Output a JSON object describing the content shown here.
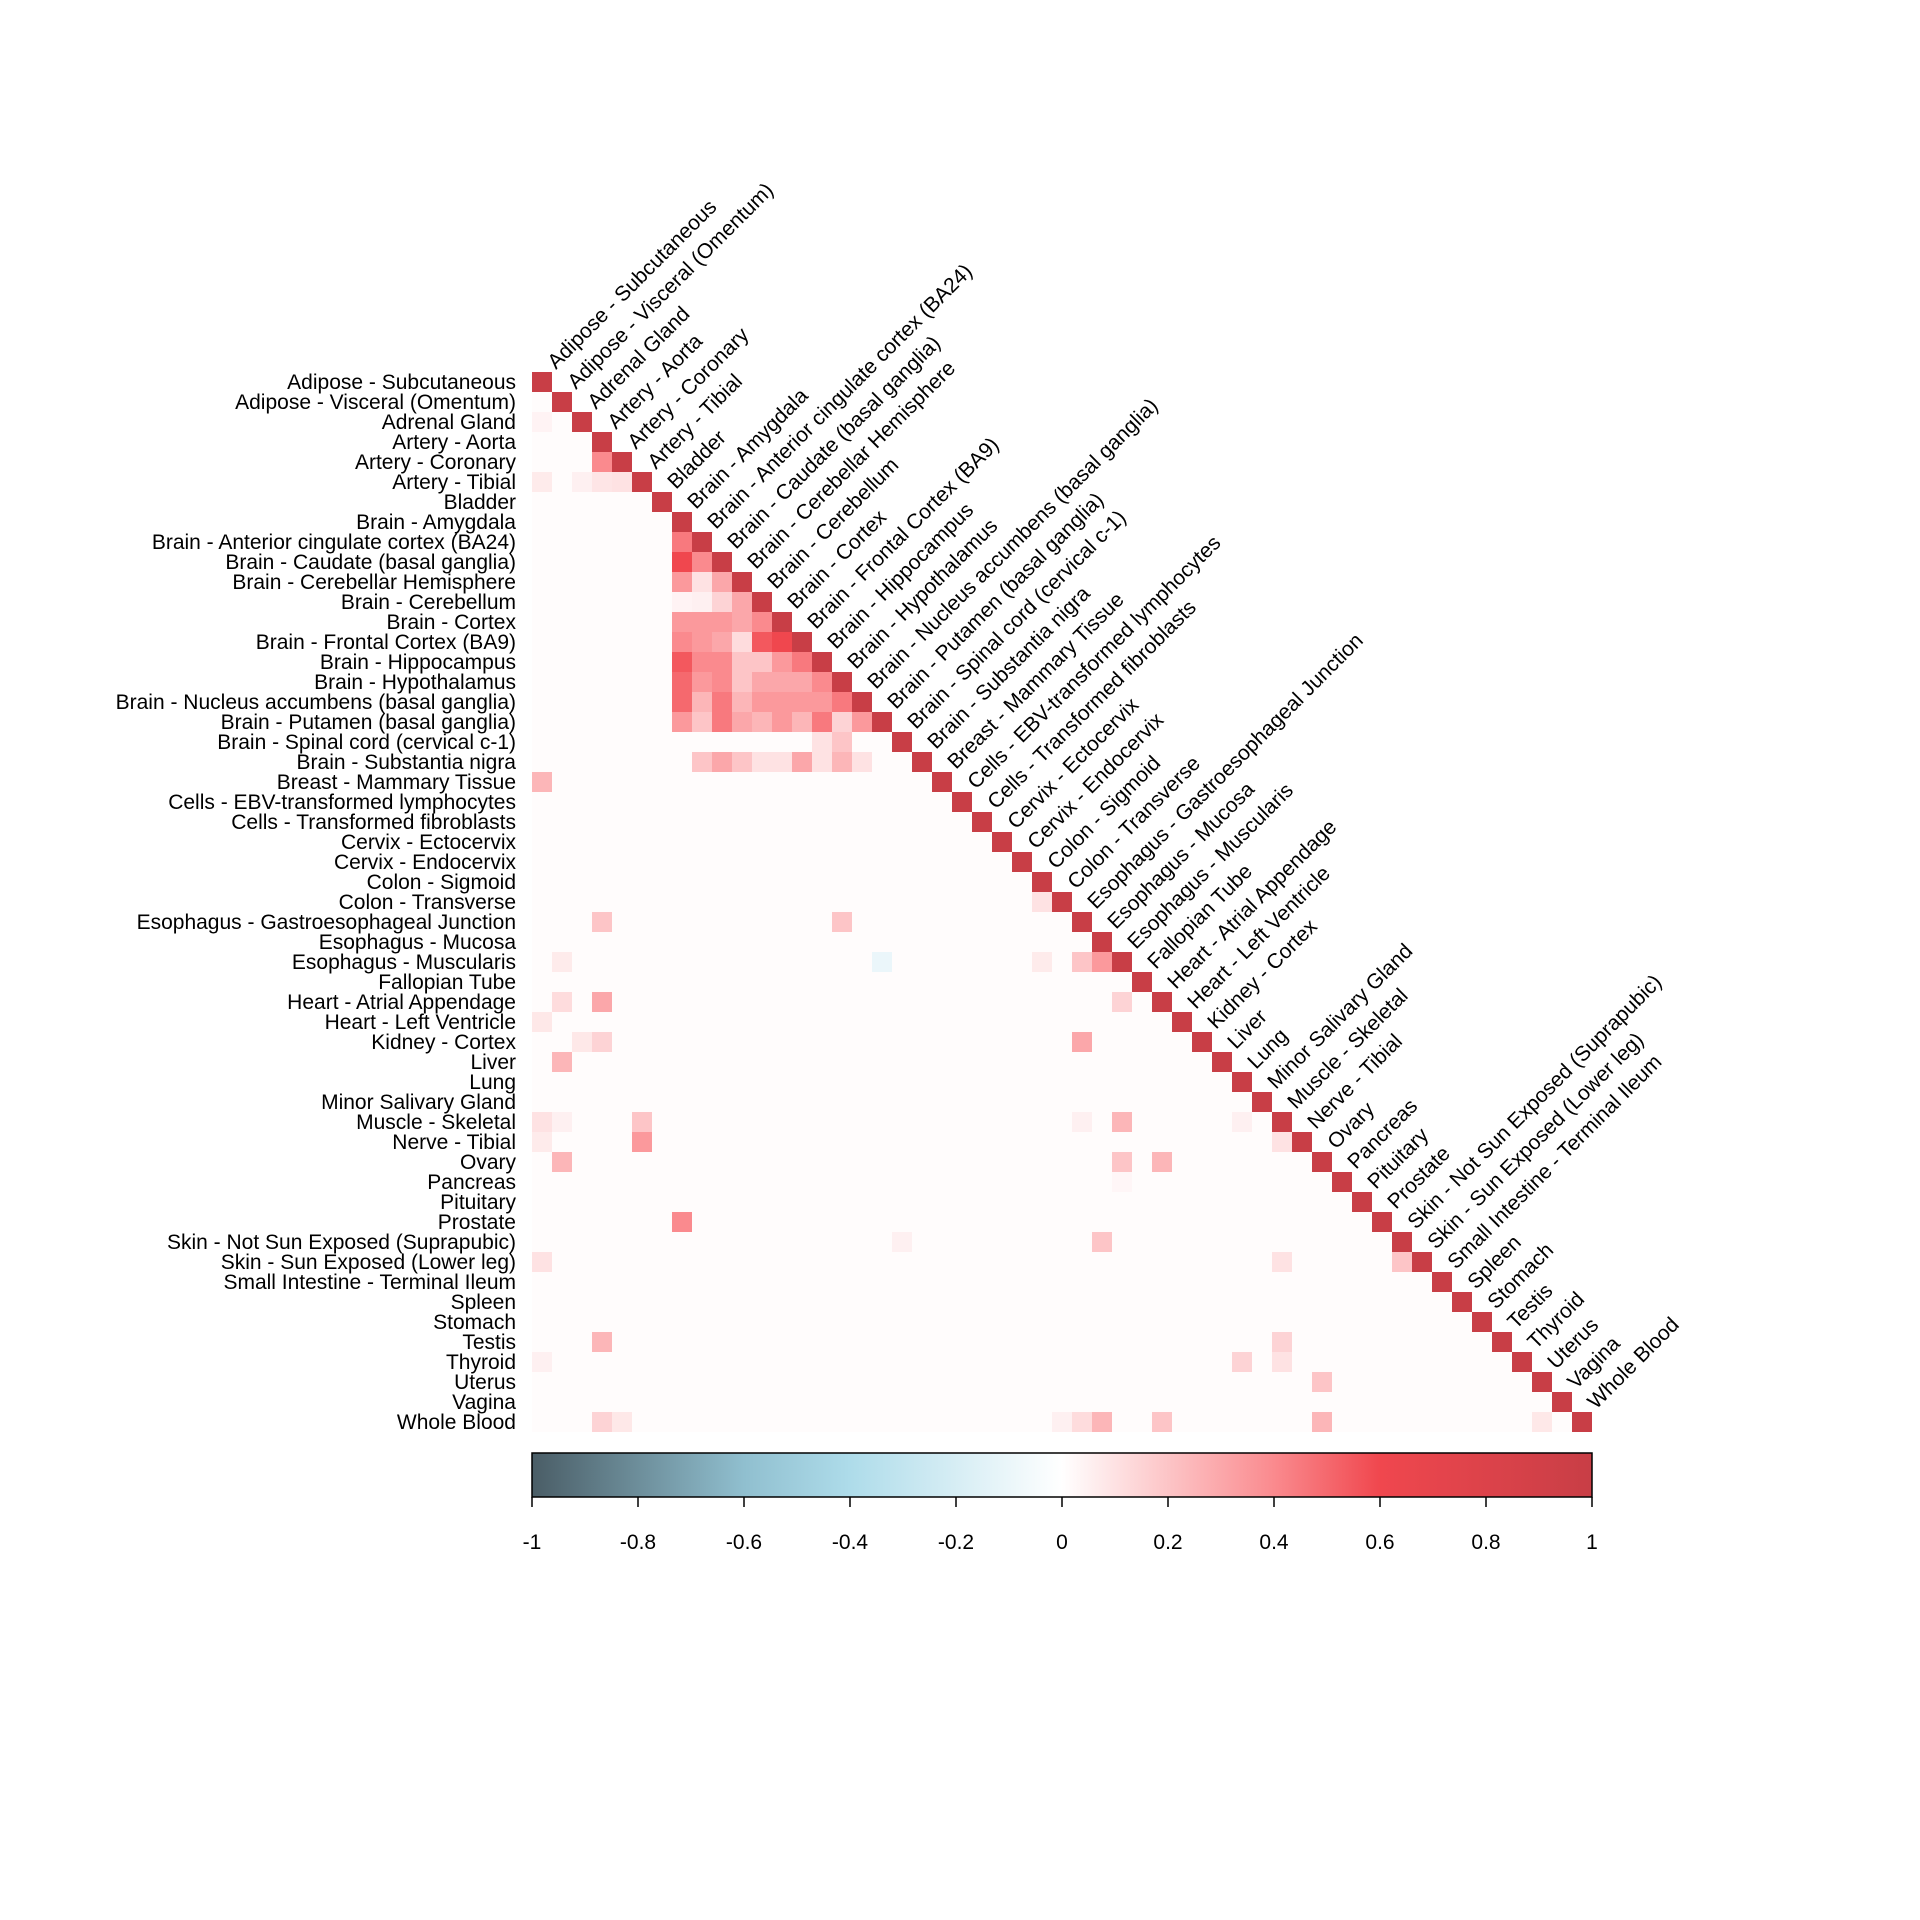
{
  "chart_data": {
    "type": "heatmap",
    "title": "",
    "xlabel": "",
    "ylabel": "",
    "layout": "lower-triangle",
    "tissues": [
      "Adipose - Subcutaneous",
      "Adipose - Visceral (Omentum)",
      "Adrenal Gland",
      "Artery - Aorta",
      "Artery - Coronary",
      "Artery - Tibial",
      "Bladder",
      "Brain - Amygdala",
      "Brain - Anterior cingulate cortex (BA24)",
      "Brain - Caudate (basal ganglia)",
      "Brain - Cerebellar Hemisphere",
      "Brain - Cerebellum",
      "Brain - Cortex",
      "Brain - Frontal Cortex (BA9)",
      "Brain - Hippocampus",
      "Brain - Hypothalamus",
      "Brain - Nucleus accumbens (basal ganglia)",
      "Brain - Putamen (basal ganglia)",
      "Brain - Spinal cord (cervical c-1)",
      "Brain - Substantia nigra",
      "Breast - Mammary Tissue",
      "Cells - EBV-transformed lymphocytes",
      "Cells - Transformed fibroblasts",
      "Cervix - Ectocervix",
      "Cervix - Endocervix",
      "Colon - Sigmoid",
      "Colon - Transverse",
      "Esophagus - Gastroesophageal Junction",
      "Esophagus - Mucosa",
      "Esophagus - Muscularis",
      "Fallopian Tube",
      "Heart - Atrial Appendage",
      "Heart - Left Ventricle",
      "Kidney - Cortex",
      "Liver",
      "Lung",
      "Minor Salivary Gland",
      "Muscle - Skeletal",
      "Nerve - Tibial",
      "Ovary",
      "Pancreas",
      "Pituitary",
      "Prostate",
      "Skin - Not Sun Exposed (Suprapubic)",
      "Skin - Sun Exposed (Lower leg)",
      "Small Intestine - Terminal Ileum",
      "Spleen",
      "Stomach",
      "Testis",
      "Thyroid",
      "Uterus",
      "Vagina",
      "Whole Blood"
    ],
    "diagonal_value": 1,
    "default_value": 0.01,
    "cells": [
      [
        2,
        0,
        0.04
      ],
      [
        4,
        3,
        0.4
      ],
      [
        5,
        0,
        0.07
      ],
      [
        5,
        2,
        0.05
      ],
      [
        5,
        3,
        0.09
      ],
      [
        5,
        4,
        0.1
      ],
      [
        8,
        7,
        0.45
      ],
      [
        9,
        7,
        0.6
      ],
      [
        9,
        8,
        0.4
      ],
      [
        10,
        7,
        0.35
      ],
      [
        10,
        8,
        0.1
      ],
      [
        10,
        9,
        0.3
      ],
      [
        11,
        7,
        0.04
      ],
      [
        11,
        8,
        0.05
      ],
      [
        11,
        9,
        0.15
      ],
      [
        11,
        10,
        0.3
      ],
      [
        12,
        7,
        0.35
      ],
      [
        12,
        8,
        0.35
      ],
      [
        12,
        9,
        0.35
      ],
      [
        12,
        10,
        0.3
      ],
      [
        12,
        11,
        0.4
      ],
      [
        13,
        7,
        0.4
      ],
      [
        13,
        8,
        0.35
      ],
      [
        13,
        9,
        0.3
      ],
      [
        13,
        10,
        0.12
      ],
      [
        13,
        11,
        0.55
      ],
      [
        13,
        12,
        0.6
      ],
      [
        14,
        7,
        0.55
      ],
      [
        14,
        8,
        0.4
      ],
      [
        14,
        9,
        0.4
      ],
      [
        14,
        10,
        0.2
      ],
      [
        14,
        11,
        0.2
      ],
      [
        14,
        12,
        0.35
      ],
      [
        14,
        13,
        0.45
      ],
      [
        15,
        7,
        0.5
      ],
      [
        15,
        8,
        0.35
      ],
      [
        15,
        9,
        0.4
      ],
      [
        15,
        10,
        0.2
      ],
      [
        15,
        11,
        0.3
      ],
      [
        15,
        12,
        0.3
      ],
      [
        15,
        13,
        0.3
      ],
      [
        15,
        14,
        0.4
      ],
      [
        16,
        7,
        0.5
      ],
      [
        16,
        8,
        0.25
      ],
      [
        16,
        9,
        0.45
      ],
      [
        16,
        10,
        0.25
      ],
      [
        16,
        11,
        0.35
      ],
      [
        16,
        12,
        0.35
      ],
      [
        16,
        13,
        0.35
      ],
      [
        16,
        14,
        0.35
      ],
      [
        16,
        15,
        0.45
      ],
      [
        17,
        7,
        0.35
      ],
      [
        17,
        8,
        0.2
      ],
      [
        17,
        9,
        0.45
      ],
      [
        17,
        10,
        0.3
      ],
      [
        17,
        11,
        0.25
      ],
      [
        17,
        12,
        0.35
      ],
      [
        17,
        13,
        0.25
      ],
      [
        17,
        14,
        0.45
      ],
      [
        17,
        15,
        0.15
      ],
      [
        17,
        16,
        0.35
      ],
      [
        18,
        14,
        0.1
      ],
      [
        18,
        15,
        0.2
      ],
      [
        19,
        8,
        0.2
      ],
      [
        19,
        9,
        0.3
      ],
      [
        19,
        10,
        0.2
      ],
      [
        19,
        11,
        0.1
      ],
      [
        19,
        12,
        0.1
      ],
      [
        19,
        13,
        0.3
      ],
      [
        19,
        14,
        0.1
      ],
      [
        19,
        15,
        0.25
      ],
      [
        19,
        16,
        0.1
      ],
      [
        20,
        0,
        0.25
      ],
      [
        26,
        25,
        0.1
      ],
      [
        27,
        3,
        0.2
      ],
      [
        27,
        15,
        0.2
      ],
      [
        29,
        1,
        0.07
      ],
      [
        29,
        17,
        -0.1
      ],
      [
        29,
        25,
        0.07
      ],
      [
        29,
        27,
        0.2
      ],
      [
        29,
        28,
        0.35
      ],
      [
        31,
        1,
        0.12
      ],
      [
        31,
        3,
        0.3
      ],
      [
        31,
        29,
        0.15
      ],
      [
        32,
        0,
        0.08
      ],
      [
        33,
        2,
        0.08
      ],
      [
        33,
        3,
        0.15
      ],
      [
        33,
        27,
        0.3
      ],
      [
        34,
        1,
        0.25
      ],
      [
        37,
        0,
        0.1
      ],
      [
        37,
        1,
        0.05
      ],
      [
        37,
        5,
        0.2
      ],
      [
        37,
        27,
        0.05
      ],
      [
        37,
        29,
        0.25
      ],
      [
        37,
        35,
        0.05
      ],
      [
        38,
        0,
        0.07
      ],
      [
        38,
        5,
        0.35
      ],
      [
        38,
        37,
        0.1
      ],
      [
        39,
        1,
        0.25
      ],
      [
        39,
        29,
        0.2
      ],
      [
        39,
        31,
        0.25
      ],
      [
        40,
        29,
        0.03
      ],
      [
        42,
        7,
        0.4
      ],
      [
        43,
        18,
        0.05
      ],
      [
        43,
        28,
        0.2
      ],
      [
        44,
        0,
        0.1
      ],
      [
        44,
        37,
        0.1
      ],
      [
        44,
        43,
        0.2
      ],
      [
        48,
        3,
        0.25
      ],
      [
        48,
        37,
        0.15
      ],
      [
        49,
        0,
        0.05
      ],
      [
        49,
        35,
        0.15
      ],
      [
        49,
        37,
        0.1
      ],
      [
        50,
        39,
        0.2
      ],
      [
        52,
        3,
        0.15
      ],
      [
        52,
        4,
        0.08
      ],
      [
        52,
        26,
        0.05
      ],
      [
        52,
        27,
        0.12
      ],
      [
        52,
        28,
        0.25
      ],
      [
        52,
        31,
        0.2
      ],
      [
        52,
        39,
        0.25
      ],
      [
        52,
        50,
        0.08
      ]
    ],
    "colorbar": {
      "min": -1,
      "max": 1,
      "ticks": [
        "-1",
        "-0.8",
        "-0.6",
        "-0.4",
        "-0.2",
        "0",
        "0.2",
        "0.4",
        "0.6",
        "0.8",
        "1"
      ],
      "stops": [
        {
          "value": -1,
          "color": "#4a5d66"
        },
        {
          "value": -0.6,
          "color": "#90bfcf"
        },
        {
          "value": -0.4,
          "color": "#aedcea"
        },
        {
          "value": 0,
          "color": "#ffffff"
        },
        {
          "value": 0.4,
          "color": "#fa8a8e"
        },
        {
          "value": 0.6,
          "color": "#f0474e"
        },
        {
          "value": 1,
          "color": "#c83e46"
        }
      ]
    },
    "grid": false
  }
}
